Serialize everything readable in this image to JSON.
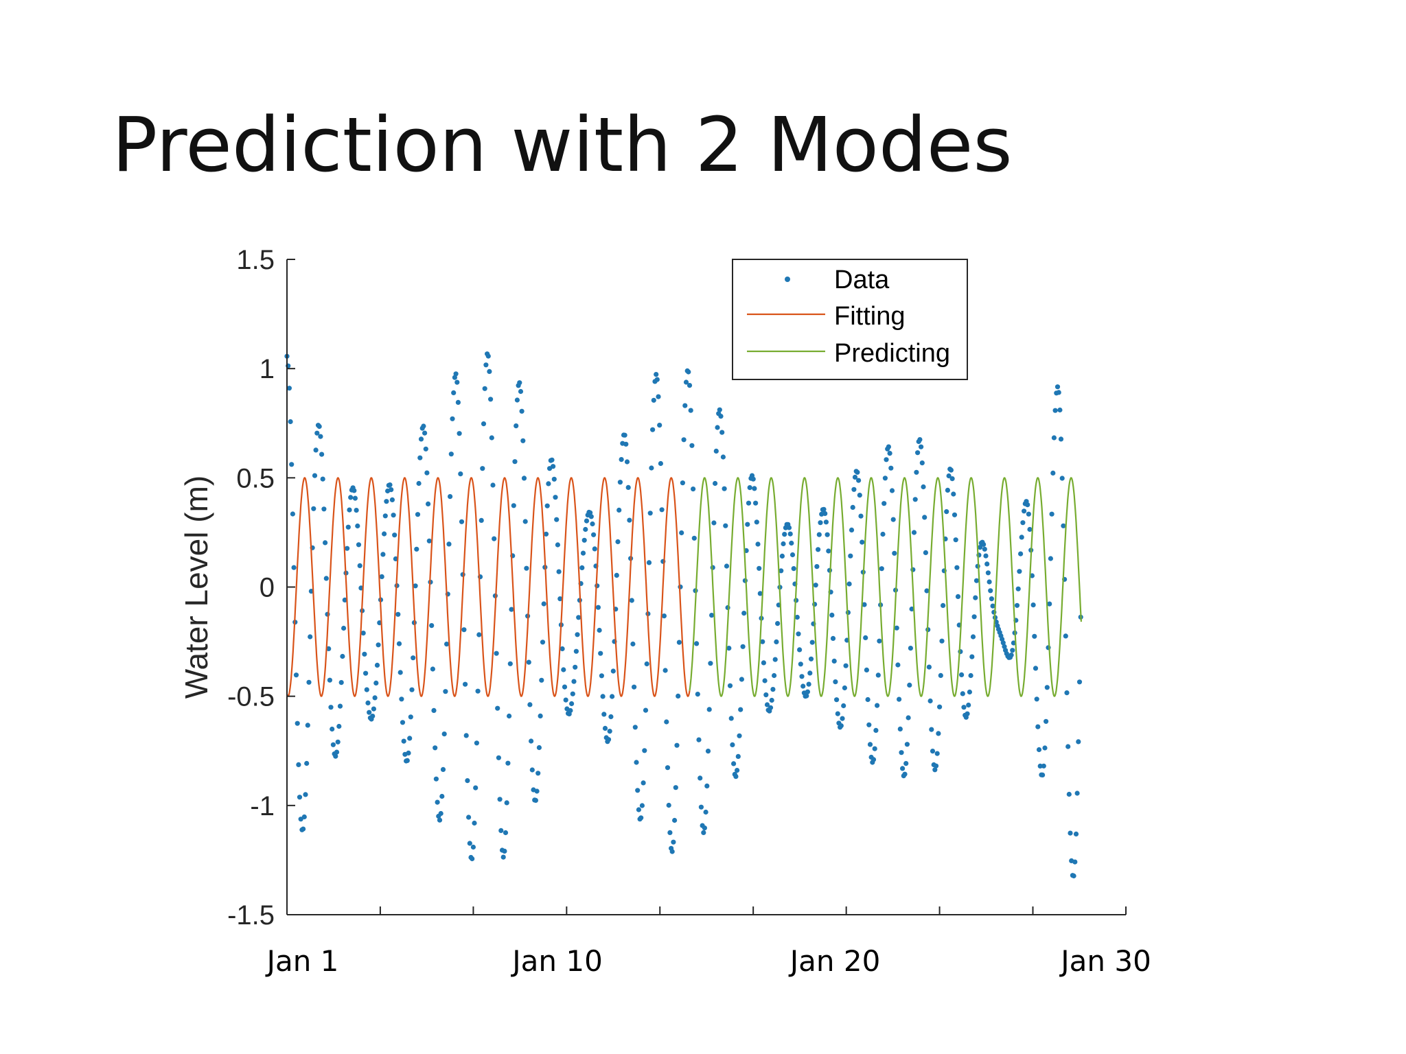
{
  "slide": {
    "title": "Prediction with 2 Modes"
  },
  "chart_data": {
    "type": "line",
    "title": "",
    "ylabel": "Water Level (m)",
    "xlabel": "",
    "xlim": [
      1,
      30
    ],
    "ylim": [
      -1.5,
      1.5
    ],
    "yticks": [
      1.5,
      1,
      0.5,
      0,
      -0.5,
      -1,
      -1.5
    ],
    "ytick_labels": [
      "1.5",
      "1",
      "0.5",
      "0",
      "-0.5",
      "-1",
      "-1.5"
    ],
    "xtick_days": [
      1,
      4.36,
      7.71,
      11.07,
      14.43,
      17.79,
      21.14,
      24.5,
      27.86,
      31.21
    ],
    "xtick_label_values": [
      1,
      10,
      20,
      30
    ],
    "xtick_labels": [
      "Jan 1",
      "Jan 10",
      "Jan 20",
      "Jan 30"
    ],
    "legend": {
      "position": "top-right",
      "entries": [
        "Data",
        "Fitting",
        "Predicting"
      ]
    },
    "colors": {
      "data": "#1f77b4",
      "fitting": "#d95319",
      "predicting": "#77ac30"
    },
    "series": [
      {
        "name": "Data",
        "style": "markers",
        "x_range": [
          1,
          29.6
        ],
        "points_per_day": 24,
        "model": {
          "semidiurnal_period_days": 1.2,
          "semidiurnal_phase": -0.2,
          "diurnal_period_days": 1.035,
          "diurnal_phase": 0.35,
          "envelope_anchor_days": [
            1,
            3,
            6,
            9,
            11,
            14,
            17,
            20,
            23,
            25,
            27.5,
            29.6
          ],
          "semidiurnal_amplitude": [
            0.72,
            0.75,
            0.82,
            0.86,
            0.85,
            0.82,
            0.7,
            0.55,
            0.45,
            0.52,
            0.7,
            0.88
          ],
          "diurnal_amplitude": [
            0.48,
            0.28,
            0.25,
            0.36,
            0.43,
            0.38,
            0.28,
            0.18,
            0.3,
            0.43,
            0.5,
            0.52
          ],
          "mean_level": -0.1
        }
      },
      {
        "name": "Fitting",
        "style": "line",
        "x_range": [
          1,
          15.5
        ],
        "amplitude": 0.5,
        "period_days": 1.2,
        "phase": -0.2
      },
      {
        "name": "Predicting",
        "style": "line",
        "x_range": [
          15.5,
          29.6
        ],
        "amplitude": 0.5,
        "period_days": 1.2,
        "phase": -0.2
      }
    ]
  }
}
